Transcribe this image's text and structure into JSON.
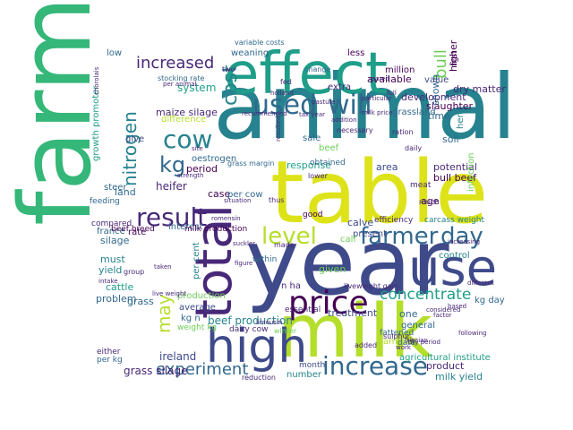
{
  "palette": {
    "dark_purple": "#440154",
    "purple": "#482878",
    "indigo": "#3e4a89",
    "slate_blue": "#31688e",
    "teal": "#26828e",
    "sea_green": "#1f9e89",
    "green": "#35b779",
    "light_green": "#6ece58",
    "lime": "#b5de2b",
    "yellow": "#dde318"
  },
  "words": [
    {
      "text": "farm",
      "color": "green"
    },
    {
      "text": "animal",
      "color": "teal"
    },
    {
      "text": "year",
      "color": "indigo"
    },
    {
      "text": "table",
      "color": "yellow"
    },
    {
      "text": "milk",
      "color": "lime"
    },
    {
      "text": "effect",
      "color": "sea_green"
    },
    {
      "text": "high",
      "color": "indigo"
    },
    {
      "text": "total",
      "color": "purple"
    },
    {
      "text": "use",
      "color": "indigo"
    },
    {
      "text": "price",
      "color": "dark_purple"
    },
    {
      "text": "used",
      "color": "slate_blue"
    },
    {
      "text": "will",
      "color": "slate_blue"
    },
    {
      "text": "increase",
      "color": "slate_blue"
    },
    {
      "text": "cow",
      "color": "teal"
    },
    {
      "text": "result",
      "color": "purple"
    },
    {
      "text": "farmer",
      "color": "slate_blue"
    },
    {
      "text": "day",
      "color": "slate_blue"
    },
    {
      "text": "level",
      "color": "lime"
    },
    {
      "text": "concentrate",
      "color": "sea_green"
    },
    {
      "text": "experiment",
      "color": "slate_blue"
    },
    {
      "text": "increased",
      "color": "purple"
    },
    {
      "text": "cost",
      "color": "teal"
    },
    {
      "text": "nitrogen",
      "color": "teal"
    },
    {
      "text": "kg",
      "color": "slate_blue"
    },
    {
      "text": "may",
      "color": "lime"
    },
    {
      "text": "bull",
      "color": "light_green"
    },
    {
      "text": "beef production",
      "color": "teal"
    },
    {
      "text": "maize silage",
      "color": "purple"
    },
    {
      "text": "grass silage",
      "color": "purple"
    },
    {
      "text": "ireland",
      "color": "indigo"
    },
    {
      "text": "milk yield",
      "color": "teal"
    },
    {
      "text": "product",
      "color": "purple"
    },
    {
      "text": "heifer",
      "color": "purple"
    },
    {
      "text": "system",
      "color": "sea_green"
    },
    {
      "text": "development",
      "color": "purple"
    },
    {
      "text": "slaughter",
      "color": "dark_purple"
    },
    {
      "text": "dry matter",
      "color": "purple"
    },
    {
      "text": "higher",
      "color": "dark_purple"
    },
    {
      "text": "shown",
      "color": "slate_blue"
    },
    {
      "text": "available",
      "color": "dark_purple"
    },
    {
      "text": "potential",
      "color": "purple"
    },
    {
      "text": "bull beef",
      "color": "dark_purple"
    },
    {
      "text": "silage",
      "color": "slate_blue"
    },
    {
      "text": "yield",
      "color": "teal"
    },
    {
      "text": "cattle",
      "color": "sea_green"
    },
    {
      "text": "grass",
      "color": "slate_blue"
    },
    {
      "text": "problem",
      "color": "slate_blue"
    },
    {
      "text": "treatment",
      "color": "indigo"
    },
    {
      "text": "per cent",
      "color": "teal"
    },
    {
      "text": "production",
      "color": "light_green"
    },
    {
      "text": "average",
      "color": "indigo"
    },
    {
      "text": "amount",
      "color": "lime"
    },
    {
      "text": "one",
      "color": "slate_blue"
    },
    {
      "text": "control",
      "color": "teal"
    },
    {
      "text": "age",
      "color": "dark_purple"
    },
    {
      "text": "herd",
      "color": "teal"
    },
    {
      "text": "soil",
      "color": "slate_blue"
    },
    {
      "text": "time",
      "color": "slate_blue"
    },
    {
      "text": "calve",
      "color": "indigo"
    },
    {
      "text": "response",
      "color": "sea_green"
    },
    {
      "text": "period",
      "color": "dark_purple"
    },
    {
      "text": "area",
      "color": "indigo"
    },
    {
      "text": "case",
      "color": "dark_purple"
    },
    {
      "text": "per cow",
      "color": "slate_blue"
    },
    {
      "text": "given",
      "color": "light_green"
    },
    {
      "text": "must",
      "color": "teal"
    },
    {
      "text": "rate",
      "color": "dark_purple"
    },
    {
      "text": "land",
      "color": "slate_blue"
    },
    {
      "text": "france",
      "color": "slate_blue"
    },
    {
      "text": "interest",
      "color": "slate_blue"
    },
    {
      "text": "give",
      "color": "indigo"
    },
    {
      "text": "difference",
      "color": "lime"
    },
    {
      "text": "growth promoter",
      "color": "sea_green"
    },
    {
      "text": "number",
      "color": "teal"
    },
    {
      "text": "kg n",
      "color": "slate_blue"
    },
    {
      "text": "n ha",
      "color": "purple"
    },
    {
      "text": "weaning",
      "color": "slate_blue"
    },
    {
      "text": "low",
      "color": "slate_blue"
    },
    {
      "text": "beef",
      "color": "light_green"
    },
    {
      "text": "general",
      "color": "slate_blue"
    },
    {
      "text": "agricultural institute",
      "color": "sea_green"
    },
    {
      "text": "kg day",
      "color": "slate_blue"
    },
    {
      "text": "grassland",
      "color": "slate_blue"
    },
    {
      "text": "present",
      "color": "indigo"
    },
    {
      "text": "calf",
      "color": "light_green"
    },
    {
      "text": "infection",
      "color": "light_green"
    },
    {
      "text": "meat",
      "color": "purple"
    },
    {
      "text": "value",
      "color": "indigo"
    },
    {
      "text": "million",
      "color": "dark_purple"
    },
    {
      "text": "first",
      "color": "dark_purple"
    },
    {
      "text": "extra",
      "color": "purple"
    },
    {
      "text": "sale",
      "color": "slate_blue"
    },
    {
      "text": "oestrogen",
      "color": "slate_blue"
    },
    {
      "text": "steer",
      "color": "slate_blue"
    },
    {
      "text": "feeding",
      "color": "slate_blue"
    },
    {
      "text": "compared",
      "color": "purple"
    },
    {
      "text": "beef breed",
      "color": "dark_purple"
    },
    {
      "text": "milk production",
      "color": "dark_purple"
    },
    {
      "text": "carcass weight",
      "color": "teal"
    },
    {
      "text": "less",
      "color": "dark_purple"
    },
    {
      "text": "month",
      "color": "indigo"
    },
    {
      "text": "reduction",
      "color": "purple"
    },
    {
      "text": "grass margin",
      "color": "slate_blue"
    },
    {
      "text": "good",
      "color": "dark_purple"
    },
    {
      "text": "within",
      "color": "slate_blue"
    },
    {
      "text": "obtained",
      "color": "slate_blue"
    },
    {
      "text": "efficiency",
      "color": "purple"
    },
    {
      "text": "liveweight gain",
      "color": "purple"
    },
    {
      "text": "essential",
      "color": "purple"
    },
    {
      "text": "fattened",
      "color": "slate_blue"
    },
    {
      "text": "data",
      "color": "slate_blue"
    },
    {
      "text": "weight kg",
      "color": "light_green"
    },
    {
      "text": "dairy cow",
      "color": "purple"
    },
    {
      "text": "either",
      "color": "purple"
    },
    {
      "text": "per kg",
      "color": "slate_blue"
    },
    {
      "text": "stocking rate",
      "color": "slate_blue"
    },
    {
      "text": "variable costs",
      "color": "slate_blue"
    },
    {
      "text": "change",
      "color": "slate_blue"
    },
    {
      "text": "necessary",
      "color": "purple"
    },
    {
      "text": "ration",
      "color": "purple"
    },
    {
      "text": "daily",
      "color": "purple"
    },
    {
      "text": "much",
      "color": "purple"
    },
    {
      "text": "sulphur",
      "color": "purple"
    },
    {
      "text": "added",
      "color": "purple"
    },
    {
      "text": "made",
      "color": "purple"
    },
    {
      "text": "group",
      "color": "purple"
    },
    {
      "text": "different",
      "color": "purple"
    },
    {
      "text": "increasing",
      "color": "purple"
    },
    {
      "text": "winter",
      "color": "light_green"
    },
    {
      "text": "two",
      "color": "purple"
    },
    {
      "text": "thus",
      "color": "purple"
    },
    {
      "text": "lower",
      "color": "purple"
    },
    {
      "text": "fed",
      "color": "purple"
    },
    {
      "text": "limousin",
      "color": "purple"
    },
    {
      "text": "resulted",
      "color": "purple"
    },
    {
      "text": "recommended",
      "color": "purple"
    },
    {
      "text": "romensin",
      "color": "purple"
    },
    {
      "text": "chorolais",
      "color": "purple"
    },
    {
      "text": "considered",
      "color": "purple"
    },
    {
      "text": "reared",
      "color": "purple"
    },
    {
      "text": "friesian",
      "color": "purple"
    },
    {
      "text": "factor",
      "color": "purple"
    },
    {
      "text": "based",
      "color": "purple"
    },
    {
      "text": "taken",
      "color": "purple"
    },
    {
      "text": "dry period",
      "color": "purple"
    },
    {
      "text": "following",
      "color": "purple"
    },
    {
      "text": "live weight",
      "color": "purple"
    },
    {
      "text": "holland",
      "color": "purple"
    },
    {
      "text": "intake",
      "color": "purple"
    },
    {
      "text": "pasture",
      "color": "purple"
    },
    {
      "text": "milk price",
      "color": "purple"
    },
    {
      "text": "addition",
      "color": "purple"
    },
    {
      "text": "work",
      "color": "purple"
    },
    {
      "text": "figure",
      "color": "purple"
    },
    {
      "text": "situation",
      "color": "purple"
    },
    {
      "text": "suckler",
      "color": "purple"
    },
    {
      "text": "particular",
      "color": "purple"
    },
    {
      "text": "full",
      "color": "purple"
    },
    {
      "text": "per animal",
      "color": "purple"
    },
    {
      "text": "tax year",
      "color": "purple"
    },
    {
      "text": "site",
      "color": "purple"
    },
    {
      "text": "strength",
      "color": "purple"
    }
  ]
}
